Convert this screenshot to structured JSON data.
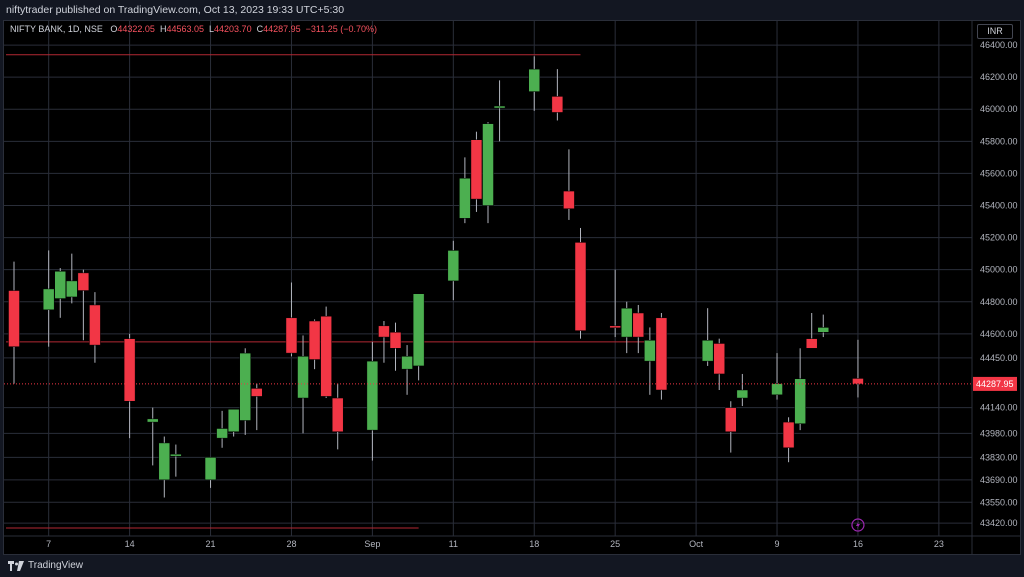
{
  "header": {
    "published_text": "niftytrader published on TradingView.com, Oct 13, 2023 19:33 UTC+5:30"
  },
  "legend": {
    "symbol": "NIFTY BANK, 1D, NSE",
    "o_label": "O",
    "o_value": "44322.05",
    "h_label": "H",
    "h_value": "44563.05",
    "l_label": "L",
    "l_value": "44203.70",
    "c_label": "C",
    "c_value": "44287.95",
    "change": "−311.25 (−0.70%)"
  },
  "currency_button": "INR",
  "footer": {
    "brand": "TradingView"
  },
  "colors": {
    "up": "#4caf50",
    "down": "#f23645",
    "background": "#000000",
    "grid": "#2a2e39",
    "last_price": "#f23645"
  },
  "chart_data": {
    "type": "candlestick",
    "title": "NIFTY BANK, 1D, NSE",
    "y_ticks": [
      "46400.00",
      "46200.00",
      "46000.00",
      "45800.00",
      "45600.00",
      "45400.00",
      "45200.00",
      "45000.00",
      "44800.00",
      "44600.00",
      "44450.00",
      "44140.00",
      "43980.00",
      "43830.00",
      "43690.00",
      "43550.00",
      "43420.00"
    ],
    "x_ticks": [
      "7",
      "14",
      "21",
      "28",
      "Sep",
      "11",
      "18",
      "25",
      "Oct",
      "9",
      "16",
      "23"
    ],
    "last_price_label": "44287.95",
    "x_range": [
      "2023-08-04",
      "2023-10-25"
    ],
    "y_range": [
      43340,
      46550
    ],
    "grid": true,
    "horizontal_levels": [
      {
        "price": 46340,
        "from": "2023-08-04",
        "to": "2023-09-22"
      },
      {
        "price": 44550,
        "from": "2023-08-04",
        "to": "2023-09-28"
      },
      {
        "price": 43390,
        "from": "2023-08-04",
        "to": "2023-09-08"
      }
    ],
    "candles": [
      {
        "d": "2023-08-04",
        "o": 44870,
        "h": 45050,
        "l": 44290,
        "c": 44520
      },
      {
        "d": "2023-08-07",
        "o": 44750,
        "h": 45120,
        "l": 44520,
        "c": 44880
      },
      {
        "d": "2023-08-08",
        "o": 44820,
        "h": 45010,
        "l": 44700,
        "c": 44990
      },
      {
        "d": "2023-08-09",
        "o": 44830,
        "h": 45100,
        "l": 44790,
        "c": 44930
      },
      {
        "d": "2023-08-10",
        "o": 44980,
        "h": 45000,
        "l": 44560,
        "c": 44870
      },
      {
        "d": "2023-08-11",
        "o": 44780,
        "h": 44860,
        "l": 44420,
        "c": 44530
      },
      {
        "d": "2023-08-14",
        "o": 44570,
        "h": 44600,
        "l": 43950,
        "c": 44180
      },
      {
        "d": "2023-08-16",
        "o": 44050,
        "h": 44140,
        "l": 43780,
        "c": 44070
      },
      {
        "d": "2023-08-17",
        "o": 43690,
        "h": 43960,
        "l": 43580,
        "c": 43920
      },
      {
        "d": "2023-08-18",
        "o": 43850,
        "h": 43910,
        "l": 43710,
        "c": 43850
      },
      {
        "d": "2023-08-21",
        "o": 43690,
        "h": 43830,
        "l": 43640,
        "c": 43830
      },
      {
        "d": "2023-08-22",
        "o": 43950,
        "h": 44120,
        "l": 43890,
        "c": 44010
      },
      {
        "d": "2023-08-23",
        "o": 43990,
        "h": 44130,
        "l": 43960,
        "c": 44130
      },
      {
        "d": "2023-08-24",
        "o": 44060,
        "h": 44510,
        "l": 43970,
        "c": 44480
      },
      {
        "d": "2023-08-25",
        "o": 44260,
        "h": 44290,
        "l": 44000,
        "c": 44210
      },
      {
        "d": "2023-08-28",
        "o": 44700,
        "h": 44920,
        "l": 44460,
        "c": 44480
      },
      {
        "d": "2023-08-29",
        "o": 44200,
        "h": 44590,
        "l": 43980,
        "c": 44460
      },
      {
        "d": "2023-08-30",
        "o": 44680,
        "h": 44690,
        "l": 44380,
        "c": 44440
      },
      {
        "d": "2023-08-31",
        "o": 44710,
        "h": 44770,
        "l": 44200,
        "c": 44210
      },
      {
        "d": "2023-09-01",
        "o": 44200,
        "h": 44290,
        "l": 43880,
        "c": 43990
      },
      {
        "d": "2023-09-04",
        "o": 44000,
        "h": 44550,
        "l": 43810,
        "c": 44430
      },
      {
        "d": "2023-09-05",
        "o": 44650,
        "h": 44680,
        "l": 44420,
        "c": 44580
      },
      {
        "d": "2023-09-06",
        "o": 44610,
        "h": 44670,
        "l": 44370,
        "c": 44510
      },
      {
        "d": "2023-09-07",
        "o": 44380,
        "h": 44530,
        "l": 44220,
        "c": 44460
      },
      {
        "d": "2023-09-08",
        "o": 44400,
        "h": 44850,
        "l": 44310,
        "c": 44850
      },
      {
        "d": "2023-09-11",
        "o": 44930,
        "h": 45180,
        "l": 44810,
        "c": 45120
      },
      {
        "d": "2023-09-12",
        "o": 45320,
        "h": 45700,
        "l": 45290,
        "c": 45570
      },
      {
        "d": "2023-09-13",
        "o": 45810,
        "h": 45860,
        "l": 45360,
        "c": 45440
      },
      {
        "d": "2023-09-14",
        "o": 45400,
        "h": 45920,
        "l": 45290,
        "c": 45910
      },
      {
        "d": "2023-09-15",
        "o": 46010,
        "h": 46180,
        "l": 45800,
        "c": 46020
      },
      {
        "d": "2023-09-18",
        "o": 46110,
        "h": 46330,
        "l": 45990,
        "c": 46250
      },
      {
        "d": "2023-09-20",
        "o": 46080,
        "h": 46250,
        "l": 45930,
        "c": 45980
      },
      {
        "d": "2023-09-21",
        "o": 45490,
        "h": 45750,
        "l": 45310,
        "c": 45380
      },
      {
        "d": "2023-09-22",
        "o": 45170,
        "h": 45260,
        "l": 44570,
        "c": 44620
      },
      {
        "d": "2023-09-25",
        "o": 44650,
        "h": 45000,
        "l": 44580,
        "c": 44640
      },
      {
        "d": "2023-09-26",
        "o": 44580,
        "h": 44800,
        "l": 44480,
        "c": 44760
      },
      {
        "d": "2023-09-27",
        "o": 44730,
        "h": 44780,
        "l": 44480,
        "c": 44580
      },
      {
        "d": "2023-09-28",
        "o": 44430,
        "h": 44640,
        "l": 44220,
        "c": 44560
      },
      {
        "d": "2023-09-29",
        "o": 44700,
        "h": 44730,
        "l": 44190,
        "c": 44250
      },
      {
        "d": "2023-10-03",
        "o": 44430,
        "h": 44760,
        "l": 44400,
        "c": 44560
      },
      {
        "d": "2023-10-04",
        "o": 44540,
        "h": 44570,
        "l": 44250,
        "c": 44350
      },
      {
        "d": "2023-10-05",
        "o": 44140,
        "h": 44180,
        "l": 43860,
        "c": 43990
      },
      {
        "d": "2023-10-06",
        "o": 44200,
        "h": 44350,
        "l": 44150,
        "c": 44250
      },
      {
        "d": "2023-10-09",
        "o": 44220,
        "h": 44480,
        "l": 44190,
        "c": 44290
      },
      {
        "d": "2023-10-10",
        "o": 44050,
        "h": 44080,
        "l": 43800,
        "c": 43890
      },
      {
        "d": "2023-10-11",
        "o": 44040,
        "h": 44510,
        "l": 44000,
        "c": 44320
      },
      {
        "d": "2023-10-12",
        "o": 44570,
        "h": 44730,
        "l": 44530,
        "c": 44510
      },
      {
        "d": "2023-10-13",
        "o": 44610,
        "h": 44720,
        "l": 44580,
        "c": 44640
      },
      {
        "d": "2023-10-16",
        "o": 44322.05,
        "h": 44563.05,
        "l": 44203.7,
        "c": 44287.95
      }
    ]
  }
}
